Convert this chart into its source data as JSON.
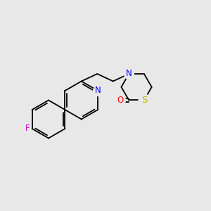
{
  "background_color": "#e8e8e8",
  "bond_color": "#000000",
  "N_color": "#0000ff",
  "S_color": "#b8b800",
  "O_color": "#ff0000",
  "F_color": "#cc00cc",
  "font_size": 8.5,
  "line_width": 1.3,
  "figsize": [
    3.0,
    3.0
  ],
  "dpi": 100,
  "xlim": [
    0,
    10
  ],
  "ylim": [
    0,
    10
  ]
}
